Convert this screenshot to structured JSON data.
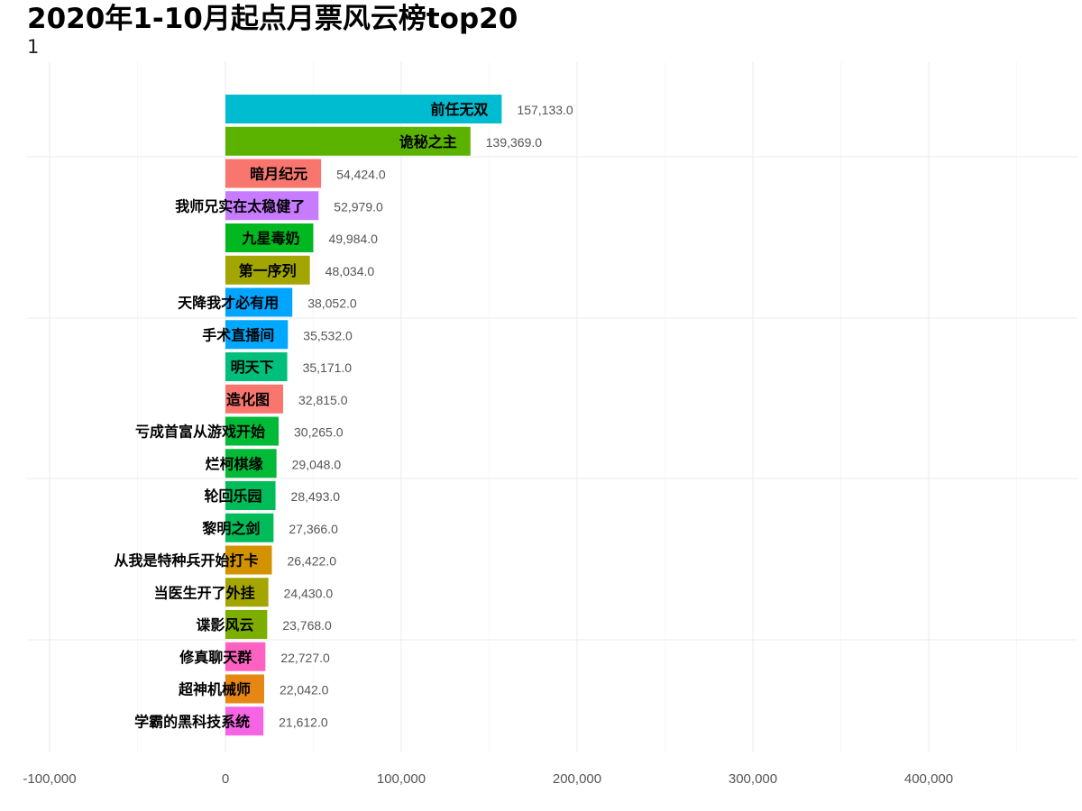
{
  "header": {
    "title": "2020年1-10月起点月票风云榜top20",
    "subtitle": "1"
  },
  "chart_data": {
    "type": "bar",
    "orientation": "horizontal",
    "title": "2020年1-10月起点月票风云榜top20",
    "subtitle": "1",
    "xlim": [
      -100000,
      480000
    ],
    "x_ticks": [
      -100000,
      0,
      100000,
      200000,
      300000,
      400000
    ],
    "x_tick_labels": [
      "-100,000",
      "0",
      "100,000",
      "200,000",
      "300,000",
      "400,000"
    ],
    "grid": true,
    "categories": [
      "前任无双",
      "诡秘之主",
      "暗月纪元",
      "我师兄实在太稳健了",
      "九星毒奶",
      "第一序列",
      "天降我才必有用",
      "手术直播间",
      "明天下",
      "造化图",
      "亏成首富从游戏开始",
      "烂柯棋缘",
      "轮回乐园",
      "黎明之剑",
      "从我是特种兵开始打卡",
      "当医生开了外挂",
      "谍影风云",
      "修真聊天群",
      "超神机械师",
      "学霸的黑科技系统"
    ],
    "values": [
      157133.0,
      139369.0,
      54424.0,
      52979.0,
      49984.0,
      48034.0,
      38052.0,
      35532.0,
      35171.0,
      32815.0,
      30265.0,
      29048.0,
      28493.0,
      27366.0,
      26422.0,
      24430.0,
      23768.0,
      22727.0,
      22042.0,
      21612.0
    ],
    "value_labels": [
      "157,133.0",
      "139,369.0",
      "54,424.0",
      "52,979.0",
      "49,984.0",
      "48,034.0",
      "38,052.0",
      "35,532.0",
      "35,171.0",
      "32,815.0",
      "30,265.0",
      "29,048.0",
      "28,493.0",
      "27,366.0",
      "26,422.0",
      "24,430.0",
      "23,768.0",
      "22,727.0",
      "22,042.0",
      "21,612.0"
    ],
    "colors": [
      "#00BCD0",
      "#5BB300",
      "#F8766D",
      "#C77CFF",
      "#00B81F",
      "#A3A500",
      "#00A5FF",
      "#00A9FF",
      "#00BF7D",
      "#F8766D",
      "#00BA38",
      "#00BA38",
      "#00BC59",
      "#00BC59",
      "#D39200",
      "#A3A500",
      "#7CAE00",
      "#FF61C3",
      "#E68613",
      "#F564E3"
    ]
  }
}
